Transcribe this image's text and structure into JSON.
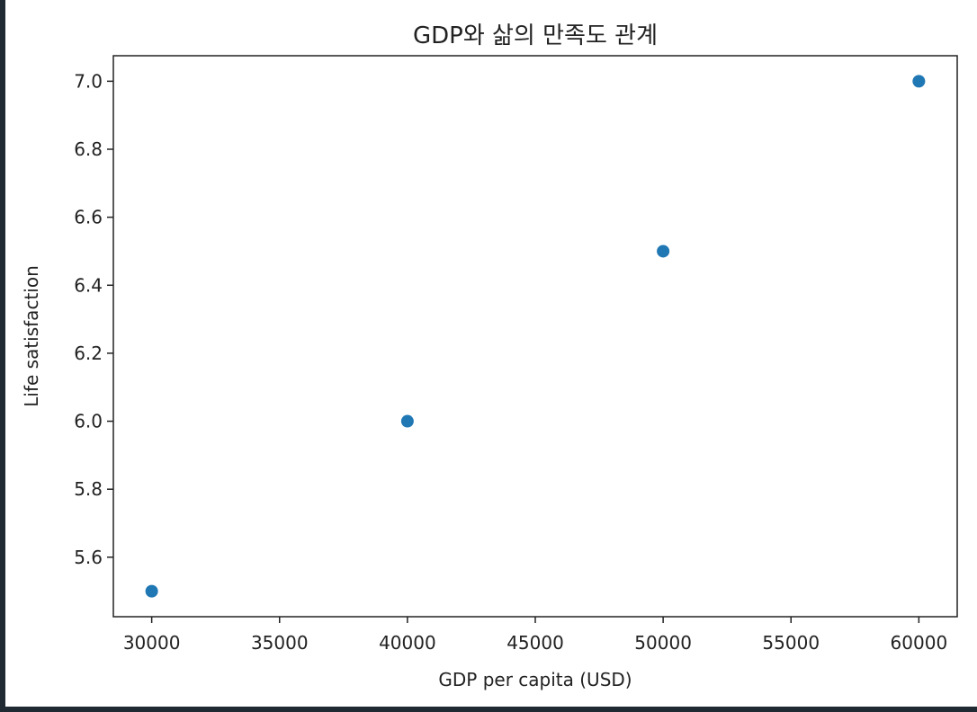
{
  "chart_data": {
    "type": "scatter",
    "title": "GDP와 삶의 만족도 관계",
    "xlabel": "GDP per capita (USD)",
    "ylabel": "Life satisfaction",
    "x": [
      30000,
      40000,
      50000,
      60000
    ],
    "y": [
      5.5,
      6.0,
      6.5,
      7.0
    ],
    "xlim": [
      28500,
      61500
    ],
    "ylim": [
      5.425,
      7.075
    ],
    "xticks": [
      30000,
      35000,
      40000,
      45000,
      50000,
      55000,
      60000
    ],
    "xtick_labels": [
      "30000",
      "35000",
      "40000",
      "45000",
      "50000",
      "55000",
      "60000"
    ],
    "yticks": [
      5.6,
      5.8,
      6.0,
      6.2,
      6.4,
      6.6,
      6.8,
      7.0
    ],
    "ytick_labels": [
      "5.6",
      "5.8",
      "6.0",
      "6.2",
      "6.4",
      "6.6",
      "6.8",
      "7.0"
    ],
    "grid": false,
    "colors": {
      "points": "#1f77b4",
      "axes": "#222222"
    }
  }
}
